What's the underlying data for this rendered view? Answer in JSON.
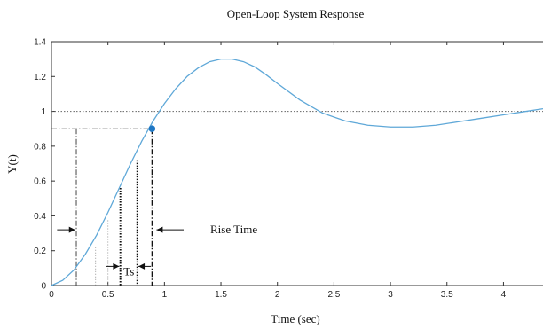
{
  "chart_data": {
    "type": "line",
    "title": "Open-Loop System Response",
    "xlabel": "Time (sec)",
    "ylabel": "Y(t)",
    "xlim": [
      0,
      4.35
    ],
    "ylim": [
      0,
      1.4
    ],
    "x_ticks": [
      0,
      0.5,
      1,
      1.5,
      2,
      2.5,
      3,
      3.5,
      4
    ],
    "x_tick_labels": [
      "0",
      "0.5",
      "1",
      "1.5",
      "2",
      "2.5",
      "3",
      "3.5",
      "4"
    ],
    "y_ticks": [
      0,
      0.2,
      0.4,
      0.6,
      0.8,
      1,
      1.2,
      1.4
    ],
    "y_tick_labels": [
      "0",
      "0.2",
      "0.4",
      "0.6",
      "0.8",
      "1",
      "1.2",
      "1.4"
    ],
    "grid": false,
    "series": [
      {
        "color": "#5fa8d8",
        "x": [
          0,
          0.1,
          0.2,
          0.3,
          0.4,
          0.5,
          0.6,
          0.7,
          0.8,
          0.9,
          1.0,
          1.1,
          1.2,
          1.3,
          1.4,
          1.5,
          1.6,
          1.7,
          1.8,
          1.9,
          2.0,
          2.2,
          2.4,
          2.6,
          2.8,
          3.0,
          3.2,
          3.4,
          3.6,
          3.8,
          4.0,
          4.2,
          4.35
        ],
        "y": [
          0,
          0.03,
          0.09,
          0.18,
          0.29,
          0.42,
          0.56,
          0.7,
          0.83,
          0.945,
          1.045,
          1.13,
          1.2,
          1.25,
          1.285,
          1.3,
          1.3,
          1.285,
          1.255,
          1.21,
          1.16,
          1.065,
          0.99,
          0.945,
          0.92,
          0.91,
          0.91,
          0.92,
          0.94,
          0.96,
          0.98,
          1.0,
          1.015
        ]
      }
    ],
    "reference_lines": {
      "steady_state": 1,
      "ninety_percent": 0.9,
      "ten_percent_time": 0.22,
      "ninety_percent_time": 0.89
    },
    "marker": {
      "x": 0.89,
      "y": 0.9,
      "color": "#1f77c4"
    },
    "annotations": {
      "rise_time": "Rise Time",
      "ts": "Ts"
    }
  }
}
